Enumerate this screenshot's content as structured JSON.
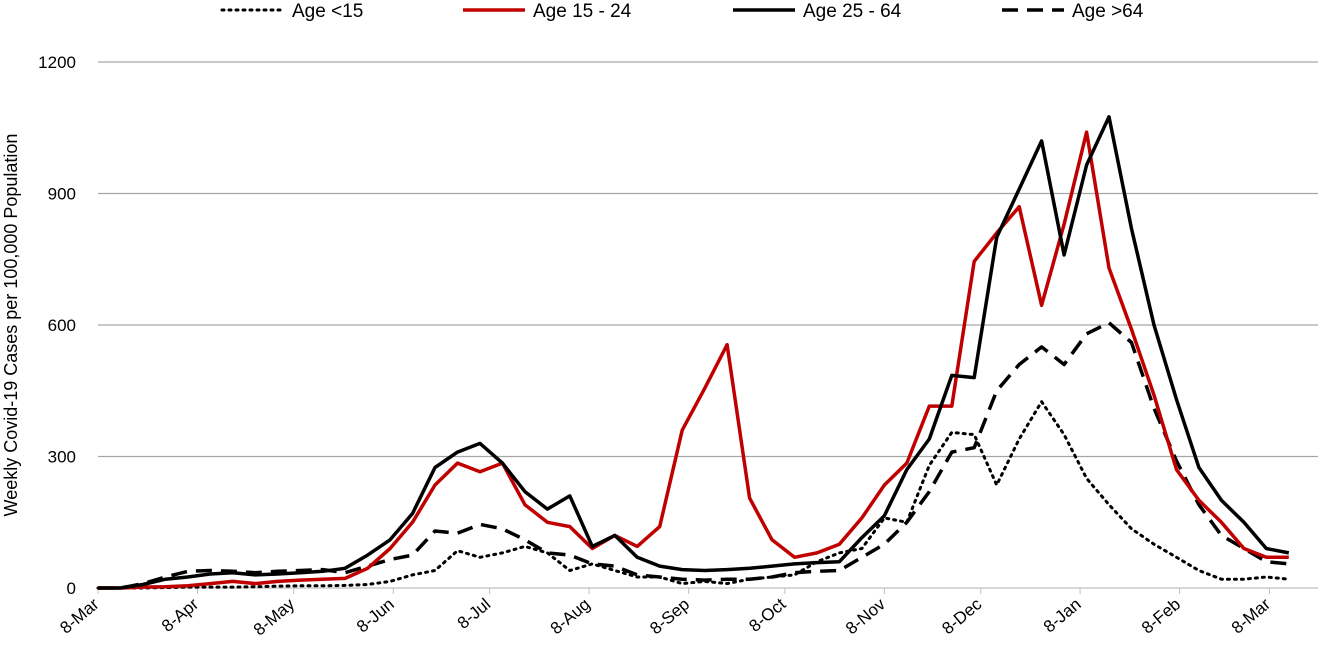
{
  "chart_data": {
    "type": "line",
    "title": "",
    "xlabel": "",
    "ylabel": "Weekly Covid-19 Cases per 100,000 Population",
    "ylim": [
      0,
      1200
    ],
    "yticks": [
      0,
      300,
      600,
      900,
      1200
    ],
    "x_tick_labels": [
      "8-Mar",
      "8-Apr",
      "8-May",
      "8-Jun",
      "8-Jul",
      "8-Aug",
      "8-Sep",
      "8-Oct",
      "8-Nov",
      "8-Dec",
      "8-Jan",
      "8-Feb",
      "8-Mar"
    ],
    "grid": "horizontal",
    "legend_position": "top",
    "series": [
      {
        "name": "Age <15",
        "color": "#000000",
        "style": "dotted",
        "values": [
          0,
          0,
          0,
          1,
          2,
          2,
          2,
          3,
          4,
          5,
          5,
          6,
          8,
          15,
          30,
          40,
          85,
          70,
          80,
          95,
          80,
          40,
          55,
          40,
          25,
          25,
          10,
          15,
          10,
          20,
          25,
          30,
          60,
          80,
          90,
          160,
          150,
          280,
          355,
          350,
          235,
          340,
          425,
          350,
          250,
          190,
          135,
          100,
          70,
          40,
          20,
          20,
          25,
          20
        ]
      },
      {
        "name": "Age 15 - 24",
        "color": "#c00000",
        "style": "solid",
        "values": [
          0,
          0,
          2,
          3,
          5,
          10,
          15,
          10,
          15,
          18,
          20,
          22,
          45,
          90,
          150,
          235,
          285,
          265,
          285,
          190,
          150,
          140,
          90,
          120,
          95,
          140,
          360,
          455,
          555,
          205,
          110,
          70,
          80,
          100,
          160,
          235,
          285,
          415,
          415,
          745,
          810,
          870,
          645,
          830,
          1040,
          730,
          590,
          440,
          270,
          200,
          150,
          90,
          70,
          70
        ]
      },
      {
        "name": "Age 25 - 64",
        "color": "#000000",
        "style": "solid",
        "values": [
          0,
          0,
          8,
          20,
          25,
          32,
          35,
          30,
          32,
          35,
          38,
          45,
          75,
          110,
          170,
          275,
          310,
          330,
          285,
          220,
          180,
          210,
          95,
          120,
          70,
          50,
          42,
          40,
          42,
          45,
          50,
          55,
          58,
          60,
          115,
          165,
          270,
          340,
          485,
          480,
          800,
          910,
          1020,
          760,
          965,
          1075,
          820,
          600,
          430,
          275,
          200,
          150,
          90,
          80
        ]
      },
      {
        "name": "Age >64",
        "color": "#000000",
        "style": "dashed",
        "values": [
          0,
          0,
          10,
          25,
          38,
          40,
          38,
          35,
          38,
          40,
          42,
          35,
          50,
          65,
          75,
          130,
          125,
          145,
          135,
          110,
          80,
          75,
          55,
          50,
          30,
          25,
          20,
          18,
          20,
          20,
          25,
          35,
          38,
          40,
          70,
          100,
          150,
          220,
          310,
          320,
          450,
          510,
          550,
          510,
          580,
          605,
          560,
          410,
          290,
          190,
          120,
          90,
          60,
          55
        ]
      }
    ]
  }
}
